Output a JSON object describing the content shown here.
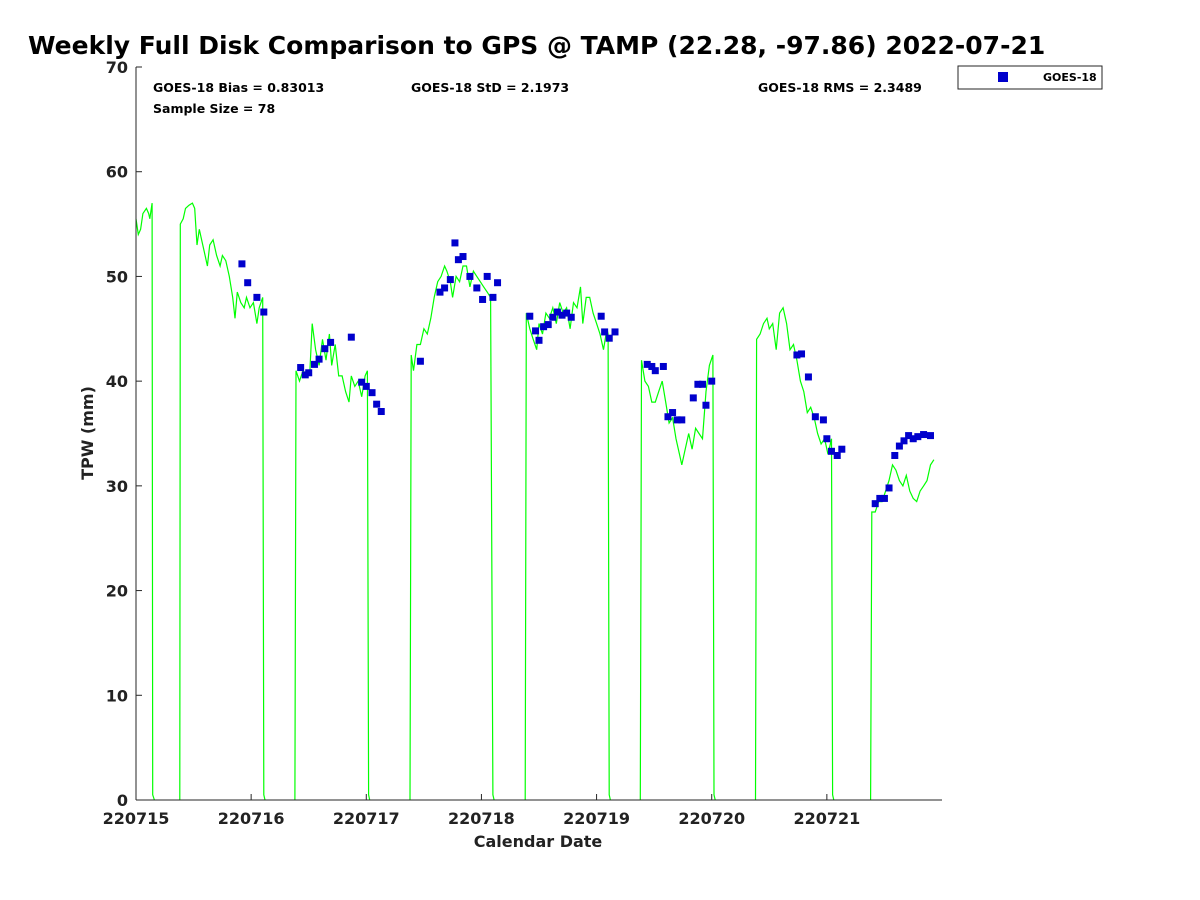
{
  "chart_data": {
    "type": "scatter",
    "title": "Weekly Full Disk Comparison to GPS @ TAMP (22.28, -97.86) 2022-07-21",
    "xlabel": "Calendar Date",
    "ylabel": "TPW (mm)",
    "ylim": [
      0,
      70
    ],
    "xlim": [
      0,
      7
    ],
    "yticks": [
      "0",
      "10",
      "20",
      "30",
      "40",
      "50",
      "60",
      "70"
    ],
    "xtick_labels": [
      "220715",
      "220716",
      "220717",
      "220718",
      "220719",
      "220720",
      "220721"
    ],
    "stats": {
      "bias": "GOES-18 Bias = 0.83013",
      "std": "GOES-18 StD = 2.1973",
      "rms": "GOES-18 RMS = 2.3489",
      "sample_size": "Sample Size = 78"
    },
    "legend": {
      "label": "GOES-18",
      "position": "top-right-outside"
    },
    "colors": {
      "goes": "#0000cc",
      "gps": "#00ff00"
    },
    "series": [
      {
        "name": "GPS",
        "kind": "line",
        "segments": [
          [
            [
              0.0,
              55.5
            ],
            [
              0.02,
              54.0
            ],
            [
              0.04,
              54.5
            ],
            [
              0.06,
              56.0
            ],
            [
              0.09,
              56.5
            ],
            [
              0.11,
              56.0
            ],
            [
              0.12,
              55.5
            ],
            [
              0.14,
              57.0
            ],
            [
              0.145,
              0.5
            ],
            [
              0.16,
              0
            ]
          ],
          [
            [
              0.38,
              0
            ],
            [
              0.385,
              55.0
            ],
            [
              0.41,
              55.5
            ],
            [
              0.43,
              56.5
            ],
            [
              0.46,
              56.8
            ],
            [
              0.49,
              57.0
            ],
            [
              0.51,
              56.5
            ],
            [
              0.53,
              53.0
            ],
            [
              0.55,
              54.5
            ],
            [
              0.57,
              53.5
            ],
            [
              0.6,
              52.0
            ],
            [
              0.62,
              51.0
            ],
            [
              0.64,
              53.0
            ],
            [
              0.67,
              53.5
            ],
            [
              0.7,
              52.0
            ],
            [
              0.73,
              51.0
            ],
            [
              0.75,
              52.0
            ],
            [
              0.78,
              51.5
            ],
            [
              0.81,
              50.0
            ],
            [
              0.84,
              48.0
            ],
            [
              0.86,
              46.0
            ],
            [
              0.88,
              48.5
            ],
            [
              0.91,
              47.5
            ],
            [
              0.94,
              47.0
            ],
            [
              0.96,
              48.0
            ],
            [
              0.99,
              47.0
            ],
            [
              1.02,
              47.5
            ],
            [
              1.05,
              45.5
            ],
            [
              1.07,
              47.0
            ],
            [
              1.1,
              48.0
            ],
            [
              1.11,
              0.5
            ],
            [
              1.12,
              0
            ]
          ],
          [
            [
              1.38,
              0
            ],
            [
              1.39,
              41.0
            ],
            [
              1.42,
              40.0
            ],
            [
              1.45,
              41.0
            ],
            [
              1.48,
              40.5
            ],
            [
              1.51,
              41.0
            ],
            [
              1.53,
              45.5
            ],
            [
              1.56,
              43.0
            ],
            [
              1.59,
              41.5
            ],
            [
              1.62,
              44.0
            ],
            [
              1.65,
              42.0
            ],
            [
              1.68,
              44.5
            ],
            [
              1.7,
              41.5
            ],
            [
              1.73,
              43.5
            ],
            [
              1.76,
              40.5
            ],
            [
              1.79,
              40.5
            ],
            [
              1.82,
              39.0
            ],
            [
              1.85,
              38.0
            ],
            [
              1.87,
              40.5
            ],
            [
              1.9,
              39.5
            ],
            [
              1.93,
              40.0
            ],
            [
              1.96,
              38.5
            ],
            [
              1.99,
              40.5
            ],
            [
              2.01,
              41.0
            ],
            [
              2.02,
              0.5
            ],
            [
              2.03,
              0
            ]
          ],
          [
            [
              2.38,
              0
            ],
            [
              2.39,
              42.5
            ],
            [
              2.41,
              41.0
            ],
            [
              2.44,
              43.5
            ],
            [
              2.47,
              43.5
            ],
            [
              2.5,
              45.0
            ],
            [
              2.53,
              44.5
            ],
            [
              2.56,
              46.0
            ],
            [
              2.59,
              48.0
            ],
            [
              2.62,
              49.5
            ],
            [
              2.65,
              50.0
            ],
            [
              2.68,
              51.0
            ],
            [
              2.7,
              50.5
            ],
            [
              2.73,
              49.5
            ],
            [
              2.75,
              48.0
            ],
            [
              2.78,
              50.0
            ],
            [
              2.81,
              49.5
            ],
            [
              2.84,
              51.0
            ],
            [
              2.87,
              51.0
            ],
            [
              2.9,
              49.0
            ],
            [
              2.93,
              50.5
            ],
            [
              2.96,
              50.0
            ],
            [
              2.99,
              49.5
            ],
            [
              3.02,
              49.0
            ],
            [
              3.05,
              48.5
            ],
            [
              3.08,
              48.0
            ],
            [
              3.1,
              0.5
            ],
            [
              3.11,
              0
            ]
          ],
          [
            [
              3.38,
              0
            ],
            [
              3.39,
              46.5
            ],
            [
              3.42,
              45.0
            ],
            [
              3.45,
              44.0
            ],
            [
              3.48,
              43.0
            ],
            [
              3.5,
              45.5
            ],
            [
              3.53,
              44.5
            ],
            [
              3.56,
              46.5
            ],
            [
              3.59,
              46.0
            ],
            [
              3.62,
              47.0
            ],
            [
              3.65,
              45.5
            ],
            [
              3.68,
              47.5
            ],
            [
              3.71,
              46.5
            ],
            [
              3.74,
              47.0
            ],
            [
              3.77,
              45.0
            ],
            [
              3.8,
              47.5
            ],
            [
              3.83,
              47.0
            ],
            [
              3.86,
              49.0
            ],
            [
              3.88,
              45.5
            ],
            [
              3.91,
              48.0
            ],
            [
              3.94,
              48.0
            ],
            [
              3.97,
              46.5
            ],
            [
              4.0,
              45.5
            ],
            [
              4.03,
              44.5
            ],
            [
              4.06,
              43.0
            ],
            [
              4.09,
              45.0
            ],
            [
              4.1,
              44.5
            ],
            [
              4.11,
              0.5
            ],
            [
              4.12,
              0
            ]
          ],
          [
            [
              4.38,
              0
            ],
            [
              4.39,
              42.0
            ],
            [
              4.42,
              40.0
            ],
            [
              4.45,
              39.5
            ],
            [
              4.48,
              38.0
            ],
            [
              4.51,
              38.0
            ],
            [
              4.54,
              39.0
            ],
            [
              4.57,
              40.0
            ],
            [
              4.6,
              38.0
            ],
            [
              4.63,
              36.0
            ],
            [
              4.66,
              36.5
            ],
            [
              4.69,
              34.5
            ],
            [
              4.72,
              33.0
            ],
            [
              4.74,
              32.0
            ],
            [
              4.77,
              33.5
            ],
            [
              4.8,
              35.0
            ],
            [
              4.83,
              33.5
            ],
            [
              4.86,
              35.5
            ],
            [
              4.89,
              35.0
            ],
            [
              4.92,
              34.5
            ],
            [
              4.95,
              39.0
            ],
            [
              4.98,
              41.5
            ],
            [
              5.01,
              42.5
            ],
            [
              5.02,
              0.5
            ],
            [
              5.03,
              0
            ]
          ],
          [
            [
              5.38,
              0
            ],
            [
              5.39,
              44.0
            ],
            [
              5.42,
              44.5
            ],
            [
              5.45,
              45.5
            ],
            [
              5.48,
              46.0
            ],
            [
              5.5,
              45.0
            ],
            [
              5.53,
              45.5
            ],
            [
              5.56,
              43.0
            ],
            [
              5.59,
              46.5
            ],
            [
              5.62,
              47.0
            ],
            [
              5.65,
              45.5
            ],
            [
              5.68,
              43.0
            ],
            [
              5.71,
              43.5
            ],
            [
              5.74,
              42.0
            ],
            [
              5.77,
              40.0
            ],
            [
              5.8,
              39.0
            ],
            [
              5.83,
              37.0
            ],
            [
              5.86,
              37.5
            ],
            [
              5.89,
              36.5
            ],
            [
              5.92,
              35.0
            ],
            [
              5.95,
              34.0
            ],
            [
              5.98,
              34.5
            ],
            [
              6.01,
              33.0
            ],
            [
              6.04,
              34.5
            ],
            [
              6.05,
              0.5
            ],
            [
              6.06,
              0
            ]
          ],
          [
            [
              6.38,
              0
            ],
            [
              6.39,
              27.5
            ],
            [
              6.42,
              27.5
            ],
            [
              6.45,
              28.5
            ],
            [
              6.48,
              28.5
            ],
            [
              6.51,
              29.5
            ],
            [
              6.54,
              30.5
            ],
            [
              6.57,
              32.0
            ],
            [
              6.6,
              31.5
            ],
            [
              6.63,
              30.5
            ],
            [
              6.66,
              30.0
            ],
            [
              6.69,
              31.0
            ],
            [
              6.72,
              29.5
            ],
            [
              6.75,
              28.8
            ],
            [
              6.78,
              28.5
            ],
            [
              6.81,
              29.5
            ],
            [
              6.84,
              30.0
            ],
            [
              6.87,
              30.5
            ],
            [
              6.9,
              32.0
            ],
            [
              6.93,
              32.5
            ]
          ]
        ]
      },
      {
        "name": "GOES-18",
        "kind": "scatter",
        "points": [
          [
            0.92,
            51.2
          ],
          [
            0.97,
            49.4
          ],
          [
            1.05,
            48.0
          ],
          [
            1.11,
            46.6
          ],
          [
            1.43,
            41.3
          ],
          [
            1.47,
            40.6
          ],
          [
            1.5,
            40.8
          ],
          [
            1.55,
            41.6
          ],
          [
            1.59,
            42.1
          ],
          [
            1.64,
            43.1
          ],
          [
            1.69,
            43.7
          ],
          [
            1.87,
            44.2
          ],
          [
            1.96,
            39.9
          ],
          [
            2.0,
            39.5
          ],
          [
            2.05,
            38.9
          ],
          [
            2.09,
            37.8
          ],
          [
            2.13,
            37.1
          ],
          [
            2.47,
            41.9
          ],
          [
            2.64,
            48.5
          ],
          [
            2.68,
            48.9
          ],
          [
            2.73,
            49.7
          ],
          [
            2.77,
            53.2
          ],
          [
            2.8,
            51.6
          ],
          [
            2.84,
            51.9
          ],
          [
            2.9,
            50.0
          ],
          [
            2.96,
            48.9
          ],
          [
            3.01,
            47.8
          ],
          [
            3.05,
            50.0
          ],
          [
            3.1,
            48.0
          ],
          [
            3.14,
            49.4
          ],
          [
            3.42,
            46.2
          ],
          [
            3.47,
            44.8
          ],
          [
            3.5,
            43.9
          ],
          [
            3.54,
            45.2
          ],
          [
            3.58,
            45.4
          ],
          [
            3.62,
            46.1
          ],
          [
            3.66,
            46.6
          ],
          [
            3.7,
            46.3
          ],
          [
            3.74,
            46.5
          ],
          [
            3.78,
            46.1
          ],
          [
            4.04,
            46.2
          ],
          [
            4.07,
            44.7
          ],
          [
            4.11,
            44.1
          ],
          [
            4.16,
            44.7
          ],
          [
            4.44,
            41.6
          ],
          [
            4.48,
            41.4
          ],
          [
            4.51,
            41.0
          ],
          [
            4.58,
            41.4
          ],
          [
            4.62,
            36.6
          ],
          [
            4.66,
            37.0
          ],
          [
            4.7,
            36.3
          ],
          [
            4.74,
            36.3
          ],
          [
            4.84,
            38.4
          ],
          [
            4.88,
            39.7
          ],
          [
            4.92,
            39.7
          ],
          [
            4.95,
            37.7
          ],
          [
            5.0,
            40.0
          ],
          [
            5.74,
            42.5
          ],
          [
            5.78,
            42.6
          ],
          [
            5.84,
            40.4
          ],
          [
            5.9,
            36.6
          ],
          [
            5.97,
            36.3
          ],
          [
            6.0,
            34.5
          ],
          [
            6.04,
            33.3
          ],
          [
            6.09,
            32.9
          ],
          [
            6.13,
            33.5
          ],
          [
            6.42,
            28.3
          ],
          [
            6.46,
            28.8
          ],
          [
            6.5,
            28.8
          ],
          [
            6.54,
            29.8
          ],
          [
            6.59,
            32.9
          ],
          [
            6.63,
            33.8
          ],
          [
            6.67,
            34.3
          ],
          [
            6.71,
            34.8
          ],
          [
            6.75,
            34.5
          ],
          [
            6.79,
            34.7
          ],
          [
            6.84,
            34.9
          ],
          [
            6.9,
            34.8
          ]
        ]
      }
    ]
  }
}
